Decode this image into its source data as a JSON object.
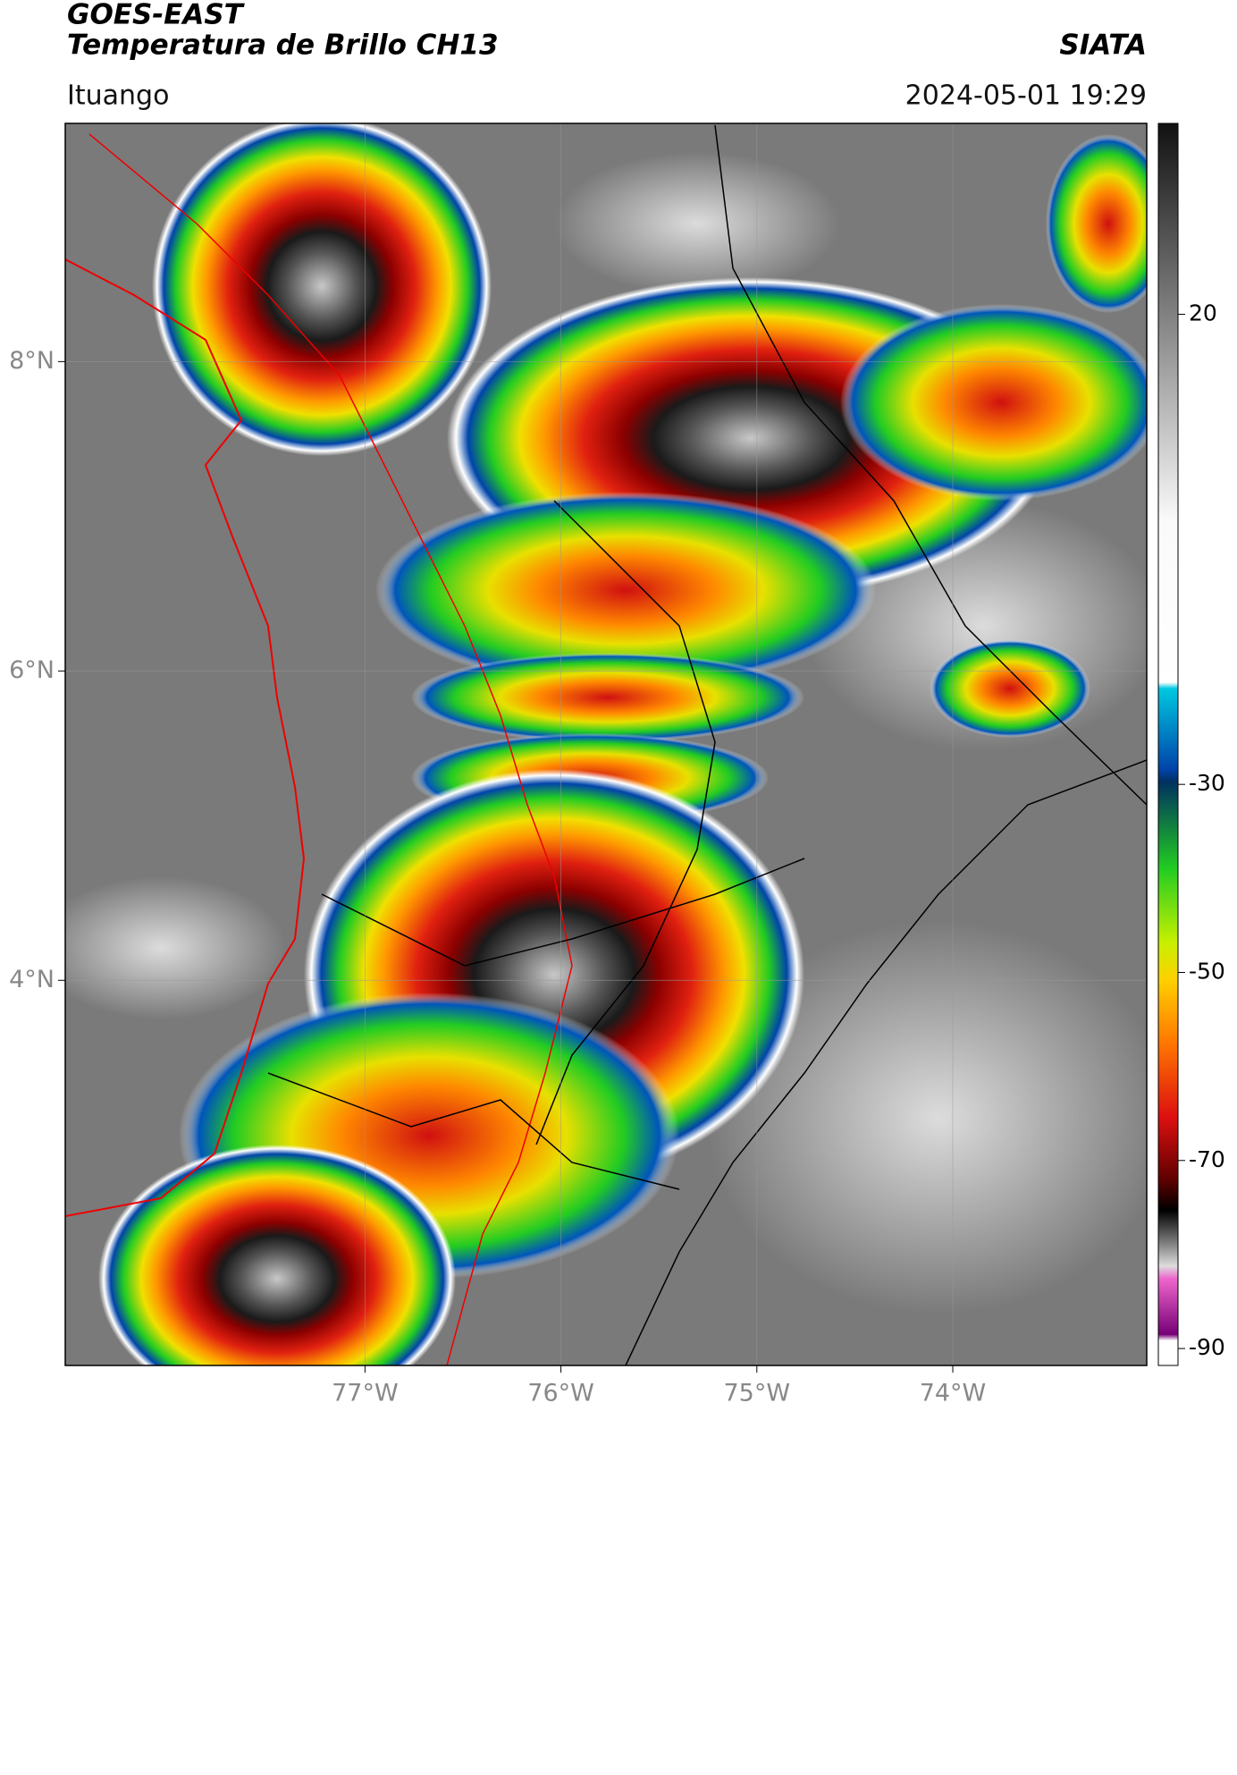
{
  "header": {
    "title": "GOES-EAST",
    "subtitle": "Temperatura de Brillo CH13",
    "agency": "SIATA",
    "location": "Ituango",
    "datetime": "2024-05-01 19:29"
  },
  "map": {
    "xlim": [
      -78.53,
      -73.01
    ],
    "ylim": [
      1.51,
      9.54
    ],
    "xticks": [
      {
        "value": -77,
        "label": "77°W"
      },
      {
        "value": -76,
        "label": "76°W"
      },
      {
        "value": -75,
        "label": "75°W"
      },
      {
        "value": -74,
        "label": "74°W"
      }
    ],
    "yticks": [
      {
        "value": 4,
        "label": "4°N"
      },
      {
        "value": 6,
        "label": "6°N"
      },
      {
        "value": 8,
        "label": "8°N"
      }
    ],
    "grid": true
  },
  "colorbar": {
    "clim": [
      -91.8,
      40.3
    ],
    "ticks": [
      20,
      -30,
      -50,
      -70,
      -90
    ]
  }
}
